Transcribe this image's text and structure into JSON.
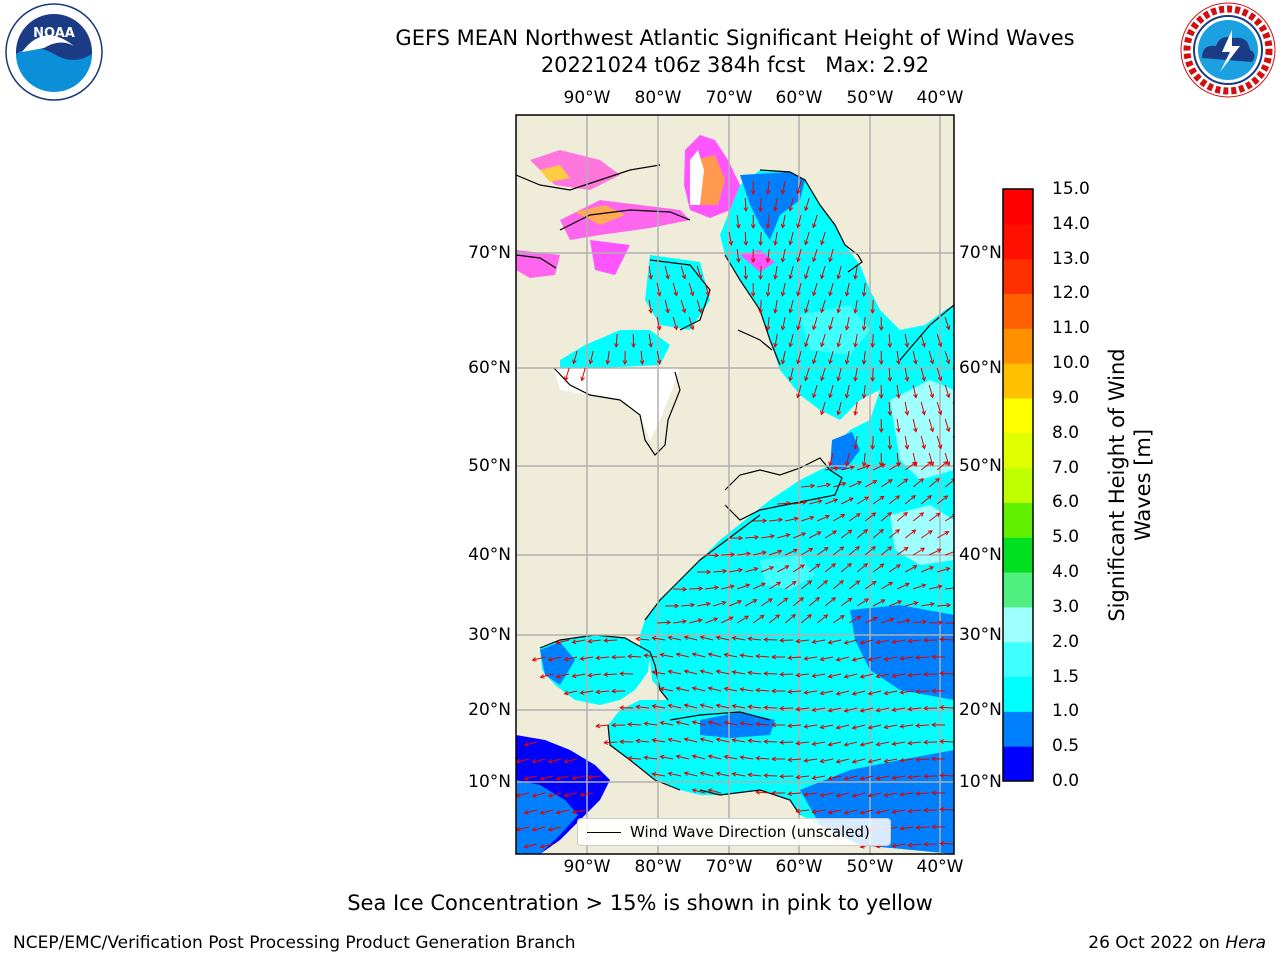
{
  "title": {
    "line1": "GEFS MEAN Northwest Atlantic Significant Height of Wind Waves",
    "line2": "20221024 t06z 384h fcst   Max: 2.92"
  },
  "logos": {
    "noaa": {
      "text": "NOAA",
      "ring_text": "NATIONAL OCEANIC AND ATMOSPHERIC ADMINISTRATION · U.S. DEPARTMENT OF COMMERCE"
    },
    "nws": {
      "ring_text": "NATIONAL WEATHER SERVICE"
    }
  },
  "map": {
    "lon_ticks": [
      "90°W",
      "80°W",
      "70°W",
      "60°W",
      "50°W",
      "40°W"
    ],
    "lat_ticks": [
      "70°N",
      "60°N",
      "50°N",
      "40°N",
      "30°N",
      "20°N",
      "10°N"
    ],
    "colors": {
      "land": "#efedda",
      "ice": "#ffffff",
      "frame": "#000000",
      "grid": "#b0b0b0",
      "arrow": "#e00000"
    }
  },
  "colorbar": {
    "label_line1": "Significant Height of Wind",
    "label_line2": "Waves [m]",
    "ticks": [
      "0.0",
      "0.5",
      "1.0",
      "1.5",
      "2.0",
      "3.0",
      "4.0",
      "5.0",
      "6.0",
      "7.0",
      "8.0",
      "9.0",
      "10.0",
      "11.0",
      "12.0",
      "13.0",
      "14.0",
      "15.0"
    ],
    "colors": [
      "#0000ff",
      "#0080ff",
      "#00ffff",
      "#40ffff",
      "#a0ffff",
      "#50f080",
      "#00e020",
      "#60f000",
      "#c0ff00",
      "#e0ff00",
      "#ffff00",
      "#ffc000",
      "#ff9000",
      "#ff6000",
      "#ff3000",
      "#ff1000",
      "#ff0000"
    ]
  },
  "legend": {
    "label": "Wind Wave Direction (unscaled)"
  },
  "caption": "Sea Ice Concentration > 15% is shown in pink to yellow",
  "footer": {
    "left": "NCEP/EMC/Verification Post Processing Product Generation Branch",
    "date": "26 Oct 2022 on",
    "machine": "Hera"
  }
}
